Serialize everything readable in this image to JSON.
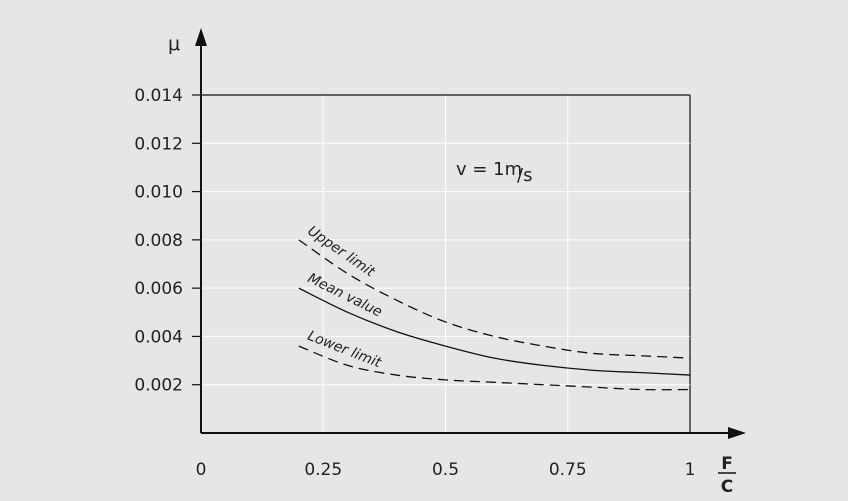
{
  "chart_data": {
    "type": "line",
    "ylabel": "μ",
    "xlabel_numerator": "F",
    "xlabel_denominator": "C",
    "annotation": {
      "text_main": "v = 1m",
      "text_sub": "/s"
    },
    "xlim": [
      0,
      1
    ],
    "ylim": [
      0,
      0.014
    ],
    "x_ticks": [
      {
        "value": 0,
        "label": "0"
      },
      {
        "value": 0.25,
        "label": "0.25"
      },
      {
        "value": 0.5,
        "label": "0.5"
      },
      {
        "value": 0.75,
        "label": "0.75"
      },
      {
        "value": 1,
        "label": "1"
      }
    ],
    "y_ticks": [
      {
        "value": 0.002,
        "label": "0.002"
      },
      {
        "value": 0.004,
        "label": "0.004"
      },
      {
        "value": 0.006,
        "label": "0.006"
      },
      {
        "value": 0.008,
        "label": "0.008"
      },
      {
        "value": 0.01,
        "label": "0.010"
      },
      {
        "value": 0.012,
        "label": "0.012"
      },
      {
        "value": 0.014,
        "label": "0.014"
      }
    ],
    "grid": true,
    "series": [
      {
        "name": "Upper limit",
        "style": "dashed",
        "x": [
          0.2,
          0.3,
          0.4,
          0.5,
          0.6,
          0.7,
          0.8,
          0.9,
          1.0
        ],
        "y": [
          0.008,
          0.0066,
          0.0055,
          0.0046,
          0.004,
          0.0036,
          0.0033,
          0.0032,
          0.0031
        ]
      },
      {
        "name": "Mean value",
        "style": "solid",
        "x": [
          0.2,
          0.3,
          0.4,
          0.5,
          0.6,
          0.7,
          0.8,
          0.9,
          1.0
        ],
        "y": [
          0.006,
          0.005,
          0.0042,
          0.0036,
          0.0031,
          0.0028,
          0.0026,
          0.0025,
          0.0024
        ]
      },
      {
        "name": "Lower limit",
        "style": "dashed",
        "x": [
          0.2,
          0.3,
          0.4,
          0.5,
          0.6,
          0.7,
          0.8,
          0.9,
          1.0
        ],
        "y": [
          0.0036,
          0.0028,
          0.0024,
          0.0022,
          0.0021,
          0.002,
          0.0019,
          0.0018,
          0.0018
        ]
      }
    ],
    "colors": {
      "background": "#e6e6e6",
      "line": "#111111",
      "grid": "#ffffff"
    }
  }
}
